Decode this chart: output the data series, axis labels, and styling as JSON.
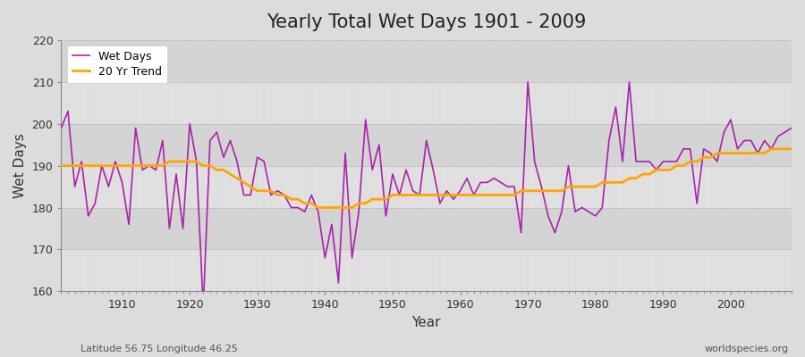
{
  "title": "Yearly Total Wet Days 1901 - 2009",
  "xlabel": "Year",
  "ylabel": "Wet Days",
  "footnote_left": "Latitude 56.75 Longitude 46.25",
  "footnote_right": "worldspecies.org",
  "ylim": [
    160,
    220
  ],
  "yticks": [
    160,
    170,
    180,
    190,
    200,
    210,
    220
  ],
  "xlim": [
    1901,
    2009
  ],
  "wet_days_color": "#aa22aa",
  "trend_color": "#ffa500",
  "bg_color": "#dcdcdc",
  "band_color_light": "#e8e8e8",
  "band_color_dark": "#d8d8d8",
  "grid_color": "#ffffff",
  "legend_label_wetdays": "Wet Days",
  "legend_label_trend": "20 Yr Trend",
  "years": [
    1901,
    1902,
    1903,
    1904,
    1905,
    1906,
    1907,
    1908,
    1909,
    1910,
    1911,
    1912,
    1913,
    1914,
    1915,
    1916,
    1917,
    1918,
    1919,
    1920,
    1921,
    1922,
    1923,
    1924,
    1925,
    1926,
    1927,
    1928,
    1929,
    1930,
    1931,
    1932,
    1933,
    1934,
    1935,
    1936,
    1937,
    1938,
    1939,
    1940,
    1941,
    1942,
    1943,
    1944,
    1945,
    1946,
    1947,
    1948,
    1949,
    1950,
    1951,
    1952,
    1953,
    1954,
    1955,
    1956,
    1957,
    1958,
    1959,
    1960,
    1961,
    1962,
    1963,
    1964,
    1965,
    1966,
    1967,
    1968,
    1969,
    1970,
    1971,
    1972,
    1973,
    1974,
    1975,
    1976,
    1977,
    1978,
    1979,
    1980,
    1981,
    1982,
    1983,
    1984,
    1985,
    1986,
    1987,
    1988,
    1989,
    1990,
    1991,
    1992,
    1993,
    1994,
    1995,
    1996,
    1997,
    1998,
    1999,
    2000,
    2001,
    2002,
    2003,
    2004,
    2005,
    2006,
    2007,
    2008,
    2009
  ],
  "wet_days": [
    199,
    203,
    185,
    191,
    178,
    181,
    190,
    185,
    191,
    186,
    176,
    199,
    189,
    190,
    189,
    196,
    175,
    188,
    175,
    200,
    191,
    156,
    196,
    198,
    192,
    196,
    191,
    183,
    183,
    192,
    191,
    183,
    184,
    183,
    180,
    180,
    179,
    183,
    179,
    168,
    176,
    162,
    193,
    168,
    179,
    201,
    189,
    195,
    178,
    188,
    183,
    189,
    184,
    183,
    196,
    189,
    181,
    184,
    182,
    184,
    187,
    183,
    186,
    186,
    187,
    186,
    185,
    185,
    174,
    210,
    191,
    185,
    178,
    174,
    179,
    190,
    179,
    180,
    179,
    178,
    180,
    196,
    204,
    191,
    210,
    191,
    191,
    191,
    189,
    191,
    191,
    191,
    194,
    194,
    181,
    194,
    193,
    191,
    198,
    201,
    194,
    196,
    196,
    193,
    196,
    194,
    197,
    198,
    199
  ],
  "trend": [
    190,
    190,
    190,
    190,
    190,
    190,
    190,
    190,
    190,
    190,
    190,
    190,
    190,
    190,
    190,
    190,
    191,
    191,
    191,
    191,
    191,
    190,
    190,
    189,
    189,
    188,
    187,
    186,
    185,
    184,
    184,
    184,
    183,
    183,
    182,
    182,
    181,
    181,
    180,
    180,
    180,
    180,
    180,
    180,
    181,
    181,
    182,
    182,
    182,
    183,
    183,
    183,
    183,
    183,
    183,
    183,
    183,
    183,
    183,
    183,
    183,
    183,
    183,
    183,
    183,
    183,
    183,
    183,
    184,
    184,
    184,
    184,
    184,
    184,
    184,
    185,
    185,
    185,
    185,
    185,
    186,
    186,
    186,
    186,
    187,
    187,
    188,
    188,
    189,
    189,
    189,
    190,
    190,
    191,
    191,
    192,
    192,
    193,
    193,
    193,
    193,
    193,
    193,
    193,
    193,
    194,
    194,
    194,
    194
  ]
}
